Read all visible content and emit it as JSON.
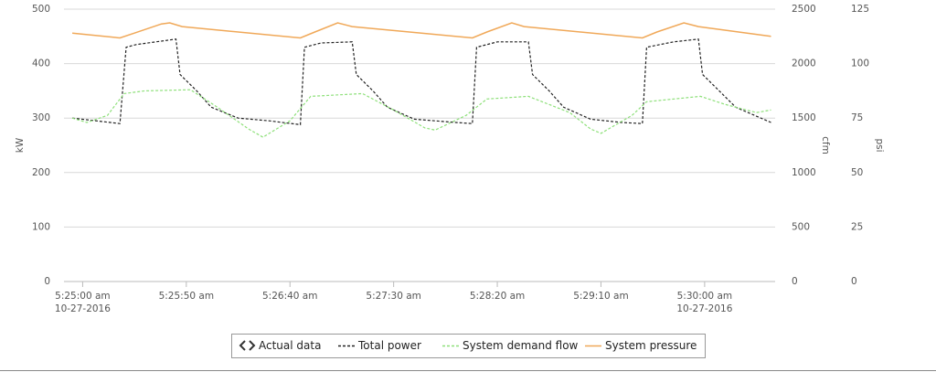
{
  "chart_data": {
    "type": "line",
    "ylabel": "kW",
    "y2label": "cfm",
    "y3label": "psi",
    "xlim": [
      "5:24:51",
      "5:30:34"
    ],
    "xticks": [
      {
        "value": "5:25:00",
        "label": "5:25:00 am",
        "date": "10-27-2016"
      },
      {
        "value": "5:25:50",
        "label": "5:25:50 am"
      },
      {
        "value": "5:26:40",
        "label": "5:26:40 am"
      },
      {
        "value": "5:27:30",
        "label": "5:27:30 am"
      },
      {
        "value": "5:28:20",
        "label": "5:28:20 am"
      },
      {
        "value": "5:29:10",
        "label": "5:29:10 am"
      },
      {
        "value": "5:30:00",
        "label": "5:30:00 am",
        "date": "10-27-2016"
      }
    ],
    "ylim": [
      0,
      500
    ],
    "yticks": [
      0,
      100,
      200,
      300,
      400,
      500
    ],
    "y2lim": [
      0,
      2500
    ],
    "y2ticks": [
      0,
      500,
      1000,
      1500,
      2000,
      2500
    ],
    "y3lim": [
      0,
      125
    ],
    "y3ticks": [
      0,
      25,
      50,
      75,
      100,
      125
    ],
    "grid": true,
    "legend_group": "Actual data",
    "legend": "bottom",
    "series": [
      {
        "name": "Total power",
        "color": "#222222",
        "dash": true,
        "axis": "y",
        "x": [
          "5:24:55",
          "5:25:18",
          "5:25:21",
          "5:25:26",
          "5:25:45",
          "5:25:47",
          "5:25:55",
          "5:26:02",
          "5:26:15",
          "5:26:30",
          "5:26:45",
          "5:26:47",
          "5:26:55",
          "5:27:10",
          "5:27:12",
          "5:27:20",
          "5:27:27",
          "5:27:40",
          "5:28:00",
          "5:28:08",
          "5:28:10",
          "5:28:20",
          "5:28:35",
          "5:28:37",
          "5:28:45",
          "5:28:52",
          "5:29:05",
          "5:29:20",
          "5:29:30",
          "5:29:32",
          "5:29:45",
          "5:29:57",
          "5:29:59",
          "5:30:07",
          "5:30:15",
          "5:30:32"
        ],
        "values": [
          300,
          290,
          430,
          435,
          445,
          380,
          350,
          320,
          300,
          295,
          288,
          430,
          438,
          440,
          380,
          350,
          320,
          298,
          292,
          290,
          430,
          440,
          440,
          380,
          350,
          320,
          298,
          292,
          290,
          430,
          440,
          445,
          380,
          350,
          320,
          292
        ]
      },
      {
        "name": "System demand flow",
        "color": "#8ee07a",
        "dash": true,
        "axis": "y2",
        "x": [
          "5:24:55",
          "5:25:02",
          "5:25:12",
          "5:25:20",
          "5:25:30",
          "5:25:52",
          "5:26:05",
          "5:26:20",
          "5:26:27",
          "5:26:40",
          "5:26:50",
          "5:27:15",
          "5:27:30",
          "5:27:45",
          "5:27:50",
          "5:28:05",
          "5:28:15",
          "5:28:35",
          "5:28:55",
          "5:29:05",
          "5:29:10",
          "5:29:25",
          "5:29:32",
          "5:29:58",
          "5:30:10",
          "5:30:25",
          "5:30:32"
        ],
        "values": [
          1500,
          1460,
          1525,
          1725,
          1750,
          1760,
          1600,
          1400,
          1325,
          1475,
          1700,
          1725,
          1575,
          1410,
          1390,
          1525,
          1675,
          1700,
          1550,
          1400,
          1360,
          1525,
          1650,
          1700,
          1625,
          1550,
          1575
        ]
      },
      {
        "name": "System pressure",
        "color": "#f0a858",
        "dash": false,
        "axis": "y3",
        "x": [
          "5:24:55",
          "5:25:18",
          "5:25:25",
          "5:25:38",
          "5:25:42",
          "5:25:48",
          "5:26:45",
          "5:26:52",
          "5:27:03",
          "5:27:10",
          "5:28:08",
          "5:28:15",
          "5:28:27",
          "5:28:33",
          "5:29:30",
          "5:29:37",
          "5:29:50",
          "5:29:57",
          "5:30:32"
        ],
        "values": [
          114,
          111.8,
          114,
          118.2,
          118.7,
          117,
          111.8,
          114.5,
          118.7,
          117,
          111.8,
          114.5,
          118.7,
          117,
          111.8,
          114.5,
          118.7,
          117,
          112.5
        ]
      }
    ]
  }
}
